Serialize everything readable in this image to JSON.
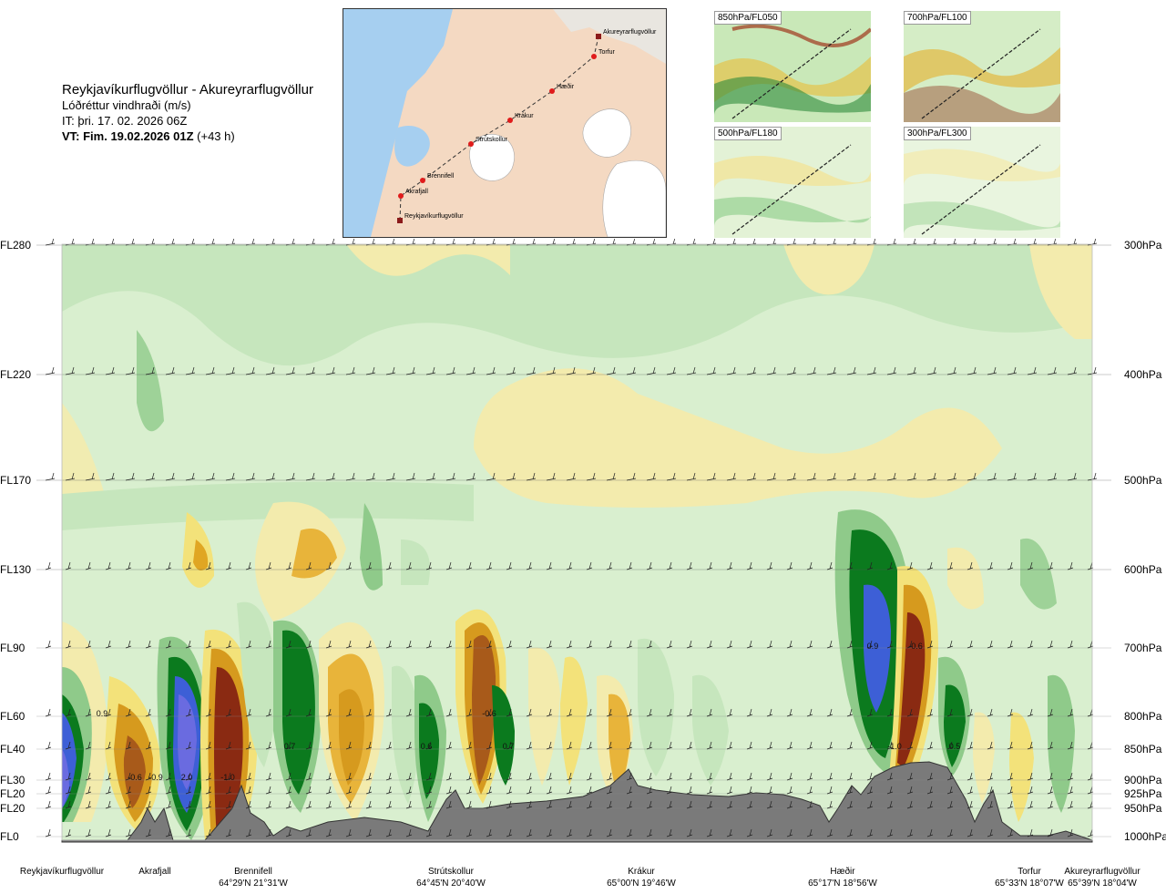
{
  "title": {
    "route": "Reykjavíkurflugvöllur - Akureyrarflugvöllur",
    "parameter": "Lóðréttur vindhraði (m/s)",
    "issue_time": "IT: þri. 17. 02. 2026 06Z",
    "valid_time_bold": "VT: Fim. 19.02.2026 01Z",
    "valid_time_lead": "(+43 h)"
  },
  "route_map": {
    "points": [
      "Reykjavíkurflugvöllur",
      "Akrafjall",
      "Brennifell",
      "Strútskollur",
      "Krákur",
      "Hæðir",
      "Torfur",
      "Akureyrarflugvöllur"
    ]
  },
  "thumbnails": [
    {
      "label": "850hPa/FL050"
    },
    {
      "label": "700hPa/FL100"
    },
    {
      "label": "500hPa/FL180"
    },
    {
      "label": "300hPa/FL300"
    }
  ],
  "levels": [
    {
      "fl": "FL280",
      "hpa": "300hPa"
    },
    {
      "fl": "FL220",
      "hpa": "400hPa"
    },
    {
      "fl": "FL170",
      "hpa": "500hPa"
    },
    {
      "fl": "FL130",
      "hpa": "600hPa"
    },
    {
      "fl": "FL90",
      "hpa": "700hPa"
    },
    {
      "fl": "FL60",
      "hpa": "800hPa"
    },
    {
      "fl": "FL40",
      "hpa": "850hPa"
    },
    {
      "fl": "FL30",
      "hpa": "900hPa"
    },
    {
      "fl": "FL20",
      "hpa": "925hPa"
    },
    {
      "fl": "FL20",
      "hpa": "950hPa"
    },
    {
      "fl": "FL0",
      "hpa": "1000hPa"
    }
  ],
  "stations": [
    {
      "name": "Reykjavíkurflugvöllur",
      "coord": ""
    },
    {
      "name": "Akrafjall",
      "coord": ""
    },
    {
      "name": "Brennifell",
      "coord": "64°29'N 21°31'W"
    },
    {
      "name": "Strútskollur",
      "coord": "64°45'N 20°40'W"
    },
    {
      "name": "Krákur",
      "coord": "65°00'N 19°46'W"
    },
    {
      "name": "Hæðir",
      "coord": "65°17'N 18°56'W"
    },
    {
      "name": "Torfur",
      "coord": "65°33'N 18°07'W"
    },
    {
      "name": "Akureyrarflugvöllur",
      "coord": "65°39'N 18°04'W"
    }
  ],
  "chart_data": {
    "type": "heatmap",
    "title": "Lóðréttur vindhraði (m/s)",
    "x_axis": "route distance (stations)",
    "y_axis_left": [
      "FL280",
      "FL220",
      "FL170",
      "FL130",
      "FL90",
      "FL60",
      "FL40",
      "FL30",
      "FL20",
      "FL20",
      "FL0"
    ],
    "y_axis_right": [
      "300hPa",
      "400hPa",
      "500hPa",
      "600hPa",
      "700hPa",
      "800hPa",
      "850hPa",
      "900hPa",
      "925hPa",
      "950hPa",
      "1000hPa"
    ],
    "value_labels": [
      {
        "text": "0.9",
        "near_station": "Reykjavíkurflugvöllur",
        "level": "FL60"
      },
      {
        "text": "-0.6",
        "near_station": "Akrafjall",
        "level": "FL30"
      },
      {
        "text": "-0.9",
        "near_station": "Akrafjall",
        "level": "FL30"
      },
      {
        "text": "2.0",
        "near_station": "Akrafjall",
        "level": "FL30"
      },
      {
        "text": "-1.0",
        "near_station": "Brennifell",
        "level": "FL30"
      },
      {
        "text": "0.7",
        "near_station": "Brennifell",
        "level": "FL40"
      },
      {
        "text": "0.6",
        "near_station": "Strútskollur",
        "level": "FL40"
      },
      {
        "text": "-0.6",
        "near_station": "Strútskollur",
        "level": "FL60"
      },
      {
        "text": "0.7",
        "near_station": "Strútskollur",
        "level": "FL40"
      },
      {
        "text": "0.9",
        "near_station": "Hæðir",
        "level": "FL90"
      },
      {
        "text": "-0.6",
        "near_station": "Hæðir",
        "level": "FL90"
      },
      {
        "text": "-1.0",
        "near_station": "Hæðir",
        "level": "FL40"
      },
      {
        "text": "0.5",
        "near_station": "Hæðir",
        "level": "FL40"
      }
    ],
    "colors": {
      "strong_up": "#3d5fd6",
      "up": "#0b7a1e",
      "weak_up": "#9fd49a",
      "neutral": "#e6f5dc",
      "weak_down": "#f2e79a",
      "down": "#d69a1e",
      "strong_down": "#8a2a12",
      "terrain": "#7a7a7a"
    }
  }
}
